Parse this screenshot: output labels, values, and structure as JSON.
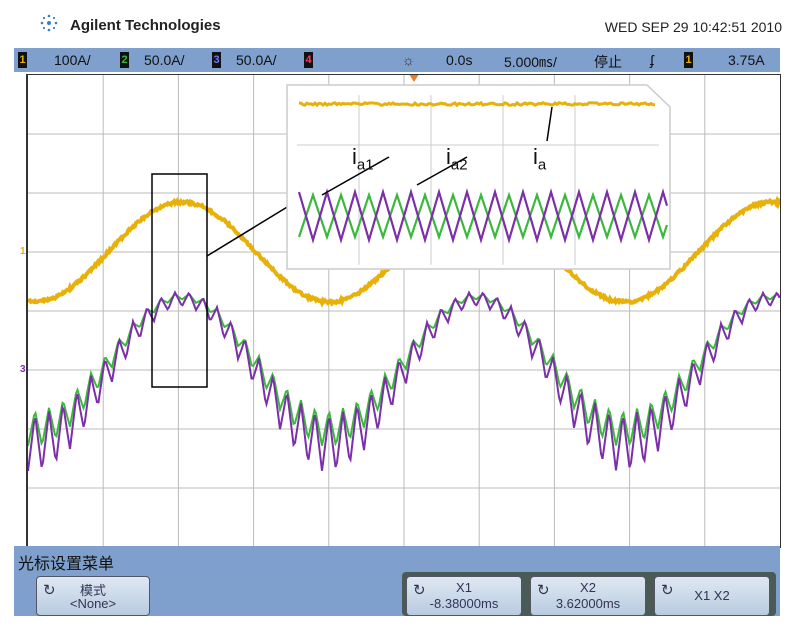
{
  "header": {
    "brand": "Agilent Technologies",
    "datetime": "WED SEP 29 10:42:51 2010"
  },
  "statusbar": {
    "ch1": "1",
    "ch1_scale": "100A/",
    "ch2": "2",
    "ch2_scale": "50.0A/",
    "ch3": "3",
    "ch3_scale": "50.0A/",
    "ch4": "4",
    "delay": "0.0s",
    "timebase": "5.000㎳/",
    "run_state": "停止",
    "trigger_slope": "ʄ",
    "trigger_source": "1",
    "trigger_level": "3.75A"
  },
  "markers": {
    "ch1": "1",
    "ch3": "3"
  },
  "inset": {
    "label_ia1": "i",
    "sub_ia1": "a1",
    "label_ia2": "i",
    "sub_ia2": "a2",
    "label_ia": "i",
    "sub_ia": "a"
  },
  "menu": {
    "title": "光标设置菜单",
    "buttons": [
      {
        "l1": "模式",
        "l2": "<None>"
      },
      {
        "l1": "X1",
        "l2": "-8.38000ms"
      },
      {
        "l1": "X2",
        "l2": "3.62000ms"
      },
      {
        "l1": "X1 X2",
        "l2": ""
      }
    ]
  },
  "colors": {
    "ch1": "#e8b10a",
    "ch2": "#3cb83c",
    "ch3": "#7b2fa8",
    "bar": "#7f9fcc"
  }
}
